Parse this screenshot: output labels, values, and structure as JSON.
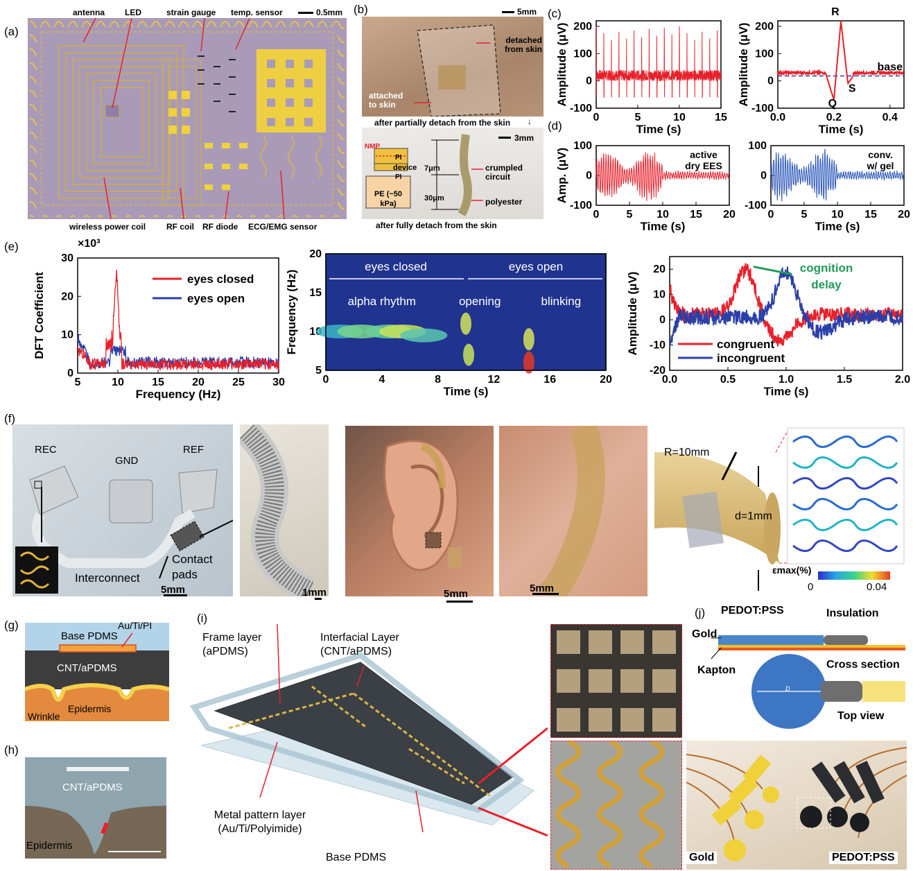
{
  "panels": {
    "a": {
      "tag": "(a)",
      "labels_top": [
        "antenna",
        "LED",
        "strain gauge",
        "temp. sensor"
      ],
      "scale": "0.5mm",
      "labels_bottom": [
        "wireless power coil",
        "RF coil",
        "RF diode",
        "ECG/EMG sensor"
      ]
    },
    "b": {
      "tag": "(b)",
      "scale_top": "5mm",
      "detached": "detached from skin",
      "attached": "attached to skin",
      "caption_top": "after partially detach from the skin",
      "scale_bottom": "3mm",
      "nmp": "NMP",
      "pi1": "PI",
      "device": "device",
      "pi2": "PI",
      "thick1": "7μm",
      "thick2": "30μm",
      "pe": "PE (~50 kPa)",
      "crumpled": "crumpled circuit",
      "polyester": "polyester",
      "caption_bottom": "after fully detach from the skin"
    },
    "c": {
      "tag": "(c)"
    },
    "d": {
      "tag": "(d)"
    },
    "e": {
      "tag": "(e)"
    },
    "f": {
      "tag": "(f)",
      "rec": "REC",
      "gnd": "GND",
      "ref": "REF",
      "contact": "Contact pads",
      "interconnect": "Interconnect",
      "scale1": "5mm",
      "scale2": "1mm",
      "scale3": "5mm",
      "scale4": "5mm",
      "r": "R=10mm",
      "d": "d=1mm",
      "emax": "εmax(%)",
      "cb_min": "0",
      "cb_max": "0.04"
    },
    "g": {
      "tag": "(g)",
      "auti": "Au/Ti/PI",
      "base": "Base PDMS",
      "cnt": "CNT/aPDMS",
      "wrinkle": "Wrinkle",
      "epidermis": "Epidermis"
    },
    "h": {
      "tag": "(h)",
      "cnt": "CNT/aPDMS",
      "epidermis": "Epidermis"
    },
    "i": {
      "tag": "(i)",
      "frame": "Frame layer (aPDMS)",
      "interfacial": "Interfacial Layer (CNT/aPDMS)",
      "metal": "Metal pattern layer (Au/Ti/Polyimide)",
      "base": "Base PDMS"
    },
    "j": {
      "tag": "(j)",
      "pedot": "PEDOT:PSS",
      "insulation": "Insulation",
      "gold": "Gold",
      "kapton": "Kapton",
      "cross": "Cross section",
      "top": "Top view",
      "dlabel": "D",
      "gold2": "Gold",
      "pedot2": "PEDOT:PSS"
    }
  },
  "chart_data": [
    {
      "id": "c1",
      "type": "line",
      "xlabel": "Time (s)",
      "ylabel": "Amplitude (μV)",
      "xlim": [
        0,
        15
      ],
      "ylim": [
        -100,
        220
      ],
      "xticks": [
        "0",
        "5",
        "10",
        "15"
      ],
      "yticks": [
        "200",
        "100",
        "0",
        "-100"
      ],
      "series": [
        {
          "color": "#e8202a",
          "description": "ECG ~1.1 Hz R peaks up to ~200"
        }
      ]
    },
    {
      "id": "c2",
      "type": "line",
      "xlabel": "Time (s)",
      "ylabel": "Amplitude (μV)",
      "xlim": [
        0,
        0.45
      ],
      "ylim": [
        -100,
        220
      ],
      "xticks": [
        "0.0",
        "0.2",
        "0.4"
      ],
      "yticks": [
        "200",
        "100",
        "0",
        "-100"
      ],
      "annotations": [
        "R",
        "Q",
        "S",
        "base"
      ]
    },
    {
      "id": "d1",
      "type": "line",
      "xlabel": "Time (s)",
      "ylabel": "Amp. (μV)",
      "xlim": [
        0,
        20
      ],
      "ylim": [
        -100,
        100
      ],
      "xticks": [
        "0",
        "5",
        "10",
        "15",
        "20"
      ],
      "yticks": [
        "100",
        "0",
        "-100"
      ],
      "annotation": "active dry EES"
    },
    {
      "id": "d2",
      "type": "line",
      "xlabel": "Time (s)",
      "ylabel": "",
      "xlim": [
        0,
        20
      ],
      "ylim": [
        -100,
        100
      ],
      "xticks": [
        "0",
        "5",
        "10",
        "15",
        "20"
      ],
      "yticks": [
        "100",
        "0",
        "-100"
      ],
      "annotation": "conv. w/ gel"
    },
    {
      "id": "e1",
      "type": "line",
      "xlabel": "Frequency (Hz)",
      "ylabel": "DFT Coefficient",
      "multiplier": "×10³",
      "xlim": [
        5,
        30
      ],
      "ylim": [
        0,
        30
      ],
      "xticks": [
        "5",
        "10",
        "15",
        "20",
        "25",
        "30"
      ],
      "yticks": [
        "30",
        "20",
        "10",
        "0"
      ],
      "series": [
        {
          "name": "eyes closed",
          "color": "#e8202a"
        },
        {
          "name": "eyes open",
          "color": "#2a3fa8"
        }
      ]
    },
    {
      "id": "e2",
      "type": "heatmap",
      "xlabel": "Time (s)",
      "ylabel": "Frequency (Hz)",
      "xlim": [
        0,
        20
      ],
      "ylim": [
        5,
        20
      ],
      "xticks": [
        "0",
        "4",
        "8",
        "12",
        "16",
        "20"
      ],
      "yticks": [
        "20",
        "15",
        "10",
        "5"
      ],
      "annotations": [
        "eyes closed",
        "eyes open",
        "alpha rhythm",
        "opening",
        "blinking"
      ]
    },
    {
      "id": "e3",
      "type": "line",
      "xlabel": "Time (s)",
      "ylabel": "Amplitude (μV)",
      "xlim": [
        0,
        2
      ],
      "ylim": [
        -20,
        25
      ],
      "xticks": [
        "0.0",
        "0.5",
        "1.0",
        "1.5",
        "2.0"
      ],
      "yticks": [
        "20",
        "10",
        "0",
        "-10",
        "-20"
      ],
      "series": [
        {
          "name": "congruent",
          "color": "#e8202a"
        },
        {
          "name": "incongruent",
          "color": "#2a3fa8"
        }
      ],
      "annotation": "cognition delay"
    }
  ]
}
